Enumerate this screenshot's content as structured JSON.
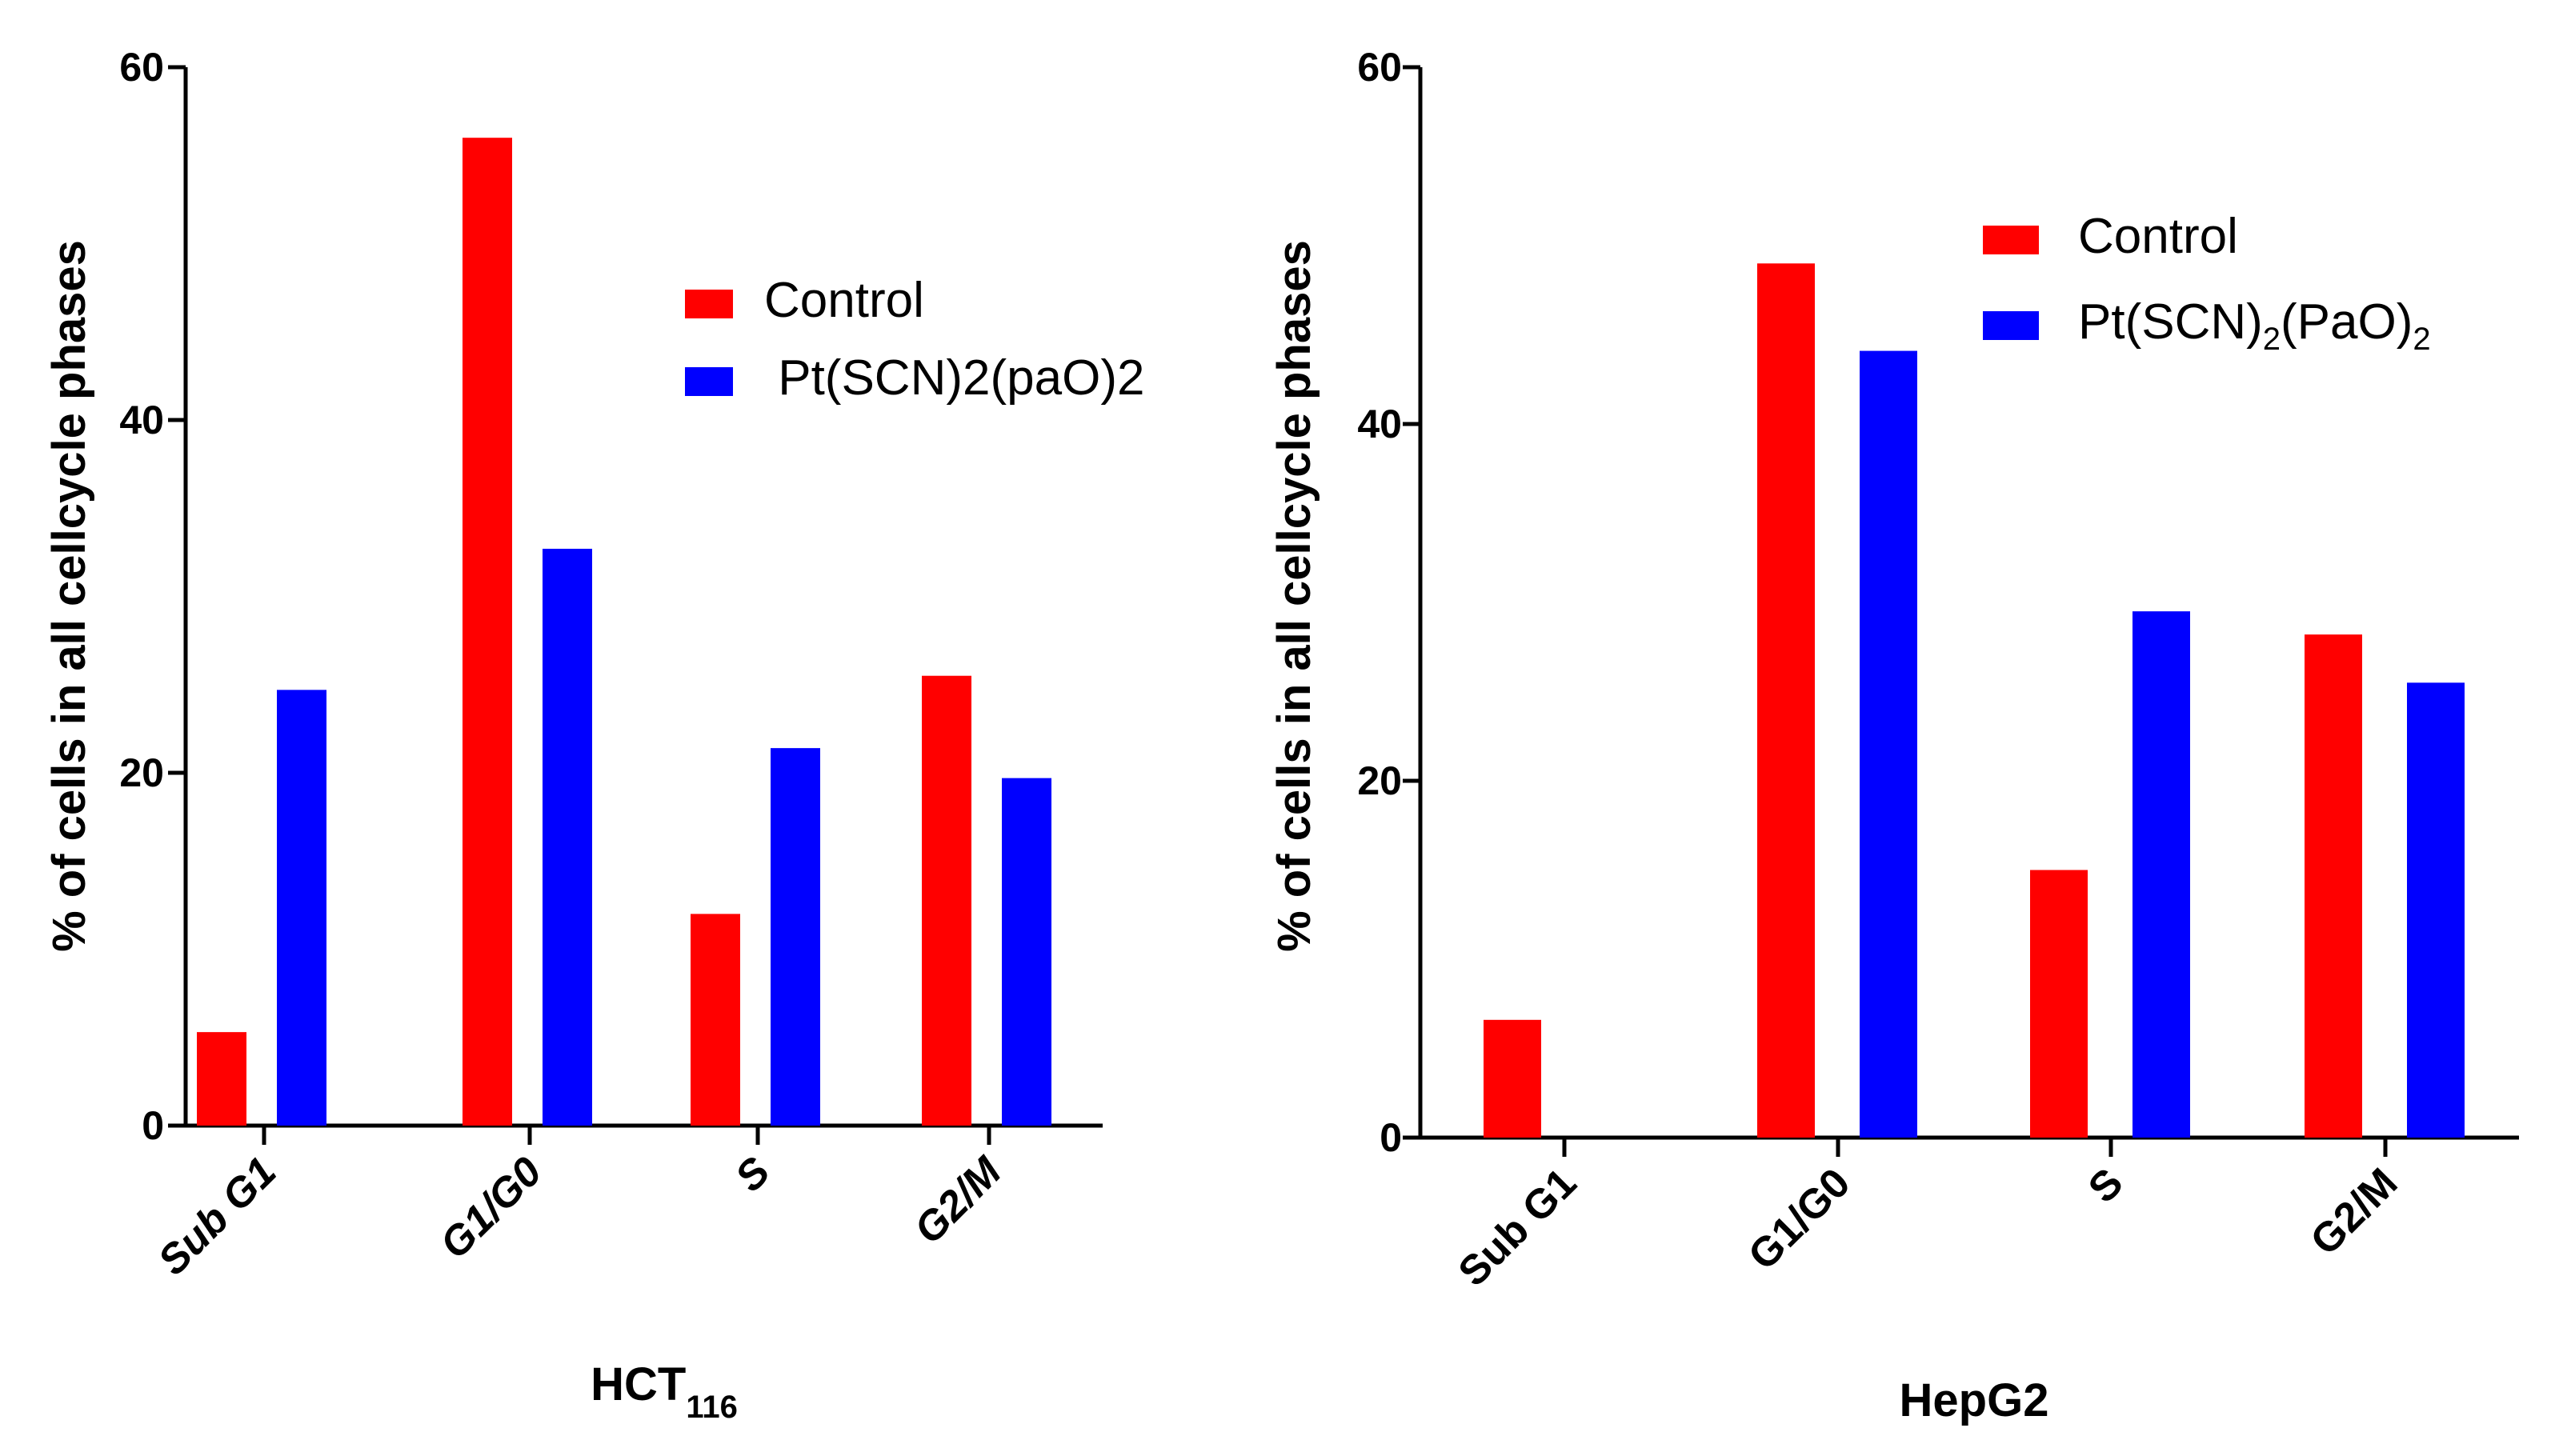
{
  "chart_data": [
    {
      "type": "bar",
      "title": "",
      "xlabel": "HCT",
      "xlabel_subscript": "116",
      "ylabel": "% of cells in all cellcycle phases",
      "categories": [
        "Sub G1",
        "G1/G0",
        "S",
        "G2/M"
      ],
      "category_style": "italic",
      "ylim": [
        0,
        60
      ],
      "yticks": [
        "0",
        "20",
        "40",
        "60"
      ],
      "grid": false,
      "legend_position": "top-right",
      "series": [
        {
          "name": "Control",
          "legend_label": "Control",
          "color": "#ff0000",
          "values": [
            5.3,
            56.0,
            12.0,
            25.5
          ]
        },
        {
          "name": "Pt(SCN)2(paO)2",
          "legend_label": " Pt(SCN)2(paO)2",
          "color": "#0000ff",
          "values": [
            24.7,
            32.7,
            21.4,
            19.7
          ]
        }
      ]
    },
    {
      "type": "bar",
      "title": "",
      "xlabel": "HepG2",
      "xlabel_subscript": "",
      "ylabel": "% of cells in all cellcycle phases",
      "categories": [
        "Sub G1",
        "G1/G0",
        "S",
        "G2/M"
      ],
      "category_style": "normal",
      "ylim": [
        0,
        60
      ],
      "yticks": [
        "0",
        "20",
        "40",
        "60"
      ],
      "grid": false,
      "legend_position": "top-right",
      "series": [
        {
          "name": "Control",
          "legend_parts": [
            "Control"
          ],
          "color": "#ff0000",
          "values": [
            6.6,
            49.0,
            15.0,
            28.2
          ]
        },
        {
          "name": "Pt(SCN)2(PaO)2",
          "legend_parts": [
            "Pt(SCN)",
            "2",
            "(PaO)",
            "2"
          ],
          "color": "#0000ff",
          "values": [
            0,
            44.1,
            29.5,
            25.5
          ]
        }
      ]
    }
  ]
}
